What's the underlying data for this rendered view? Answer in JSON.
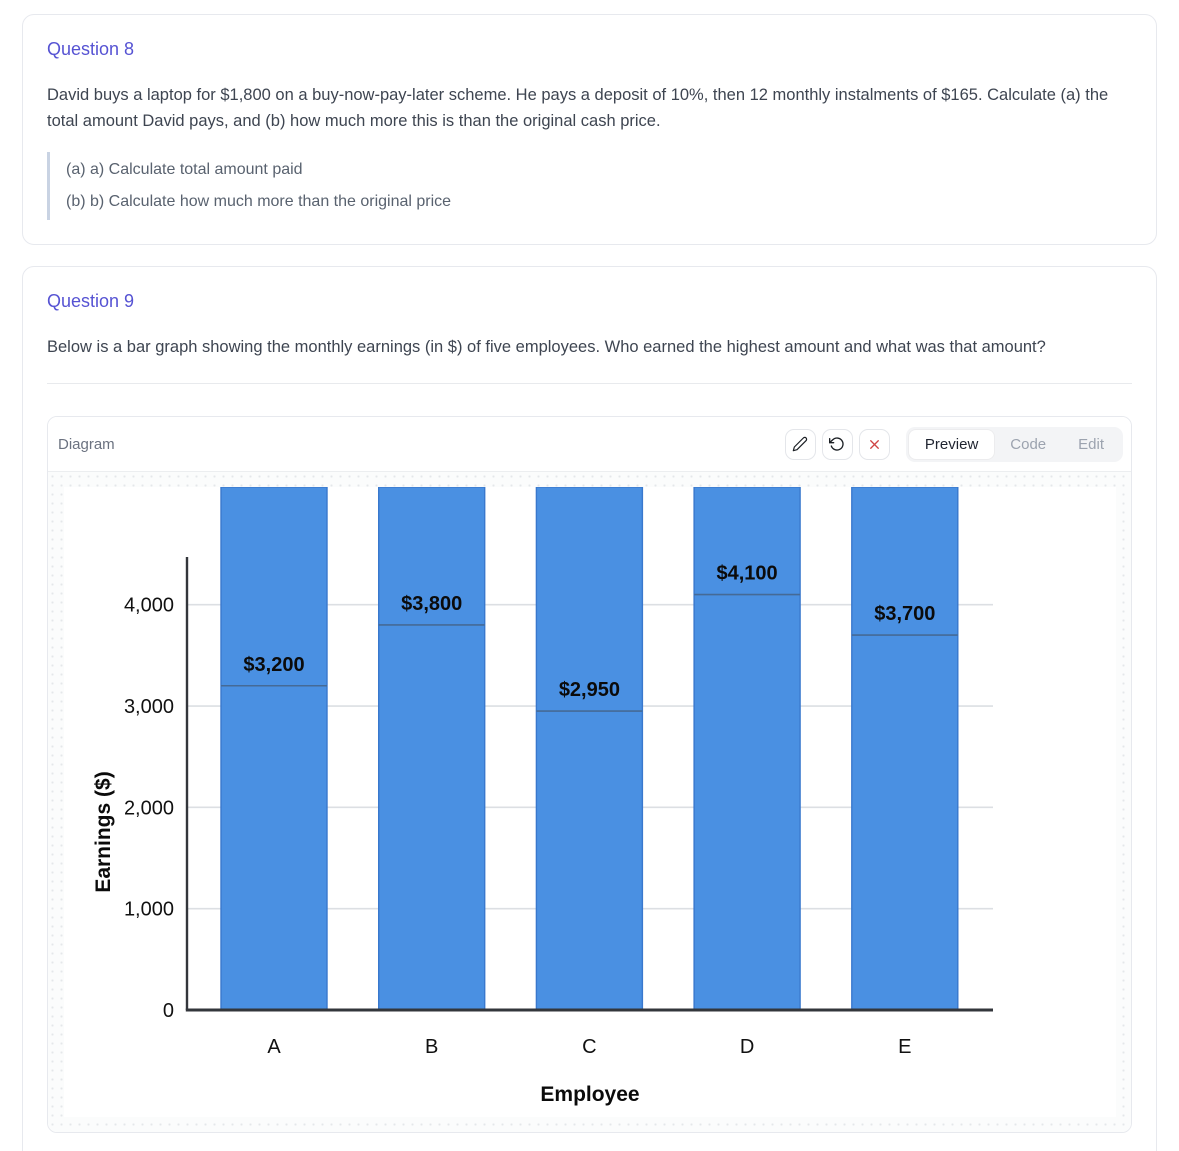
{
  "question8": {
    "title": "Question 8",
    "body": "David buys a laptop for $1,800 on a buy-now-pay-later scheme. He pays a deposit of 10%, then 12 monthly instalments of $165. Calculate (a) the total amount David pays, and (b) how much more this is than the original cash price.",
    "parts": [
      "(a) a) Calculate total amount paid",
      "(b) b) Calculate how much more than the original price"
    ]
  },
  "question9": {
    "title": "Question 9",
    "body": "Below is a bar graph showing the monthly earnings (in $) of five employees. Who earned the highest amount and what was that amount?"
  },
  "diagram": {
    "label": "Diagram",
    "toolbar_icons": [
      "pencil-icon",
      "undo-icon",
      "close-icon"
    ],
    "tabs": [
      {
        "label": "Preview",
        "active": true
      },
      {
        "label": "Code",
        "active": false
      },
      {
        "label": "Edit",
        "active": false
      }
    ]
  },
  "theme": {
    "accent": "#5653d3",
    "close_icon_color": "#cf4444"
  },
  "chart_data": {
    "type": "bar",
    "categories": [
      "A",
      "B",
      "C",
      "D",
      "E"
    ],
    "values": [
      3200,
      3800,
      2950,
      4100,
      3700
    ],
    "value_labels": [
      "$3,200",
      "$3,800",
      "$2,950",
      "$4,100",
      "$3,700"
    ],
    "xlabel": "Employee",
    "ylabel": "Earnings ($)",
    "yticks": [
      0,
      1000,
      2000,
      3000,
      4000
    ],
    "ytick_labels": [
      "0",
      "1,000",
      "2,000",
      "3,000",
      "4,000"
    ],
    "ylim": [
      0,
      4470
    ],
    "grid": true,
    "legend": false,
    "bar_color": "#4a90e2",
    "bar_border_color": "#3978cd",
    "value_line_color": "#456a96",
    "bars_overflow_to_top": true
  }
}
